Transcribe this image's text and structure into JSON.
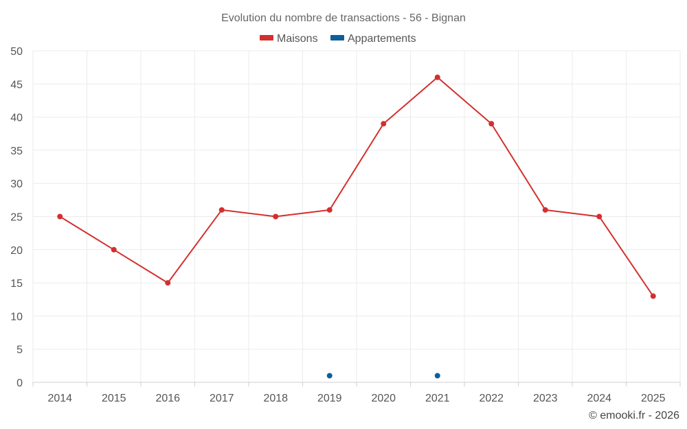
{
  "chart_data": {
    "type": "line",
    "title": "Evolution du nombre de transactions - 56 - Bignan",
    "categories": [
      "2014",
      "2015",
      "2016",
      "2017",
      "2018",
      "2019",
      "2020",
      "2021",
      "2022",
      "2023",
      "2024",
      "2025"
    ],
    "series": [
      {
        "name": "Maisons",
        "color": "#d32f2f",
        "values": [
          25,
          20,
          15,
          26,
          25,
          26,
          39,
          46,
          39,
          26,
          25,
          13
        ]
      },
      {
        "name": "Appartements",
        "color": "#0d5f99",
        "values": [
          null,
          null,
          null,
          null,
          null,
          1,
          null,
          1,
          null,
          null,
          null,
          null
        ]
      }
    ],
    "ylim": [
      0,
      50
    ],
    "yticks": [
      0,
      5,
      10,
      15,
      20,
      25,
      30,
      35,
      40,
      45,
      50
    ],
    "legend_position": "top-center",
    "grid": true
  },
  "credit": "© emooki.fr - 2026"
}
